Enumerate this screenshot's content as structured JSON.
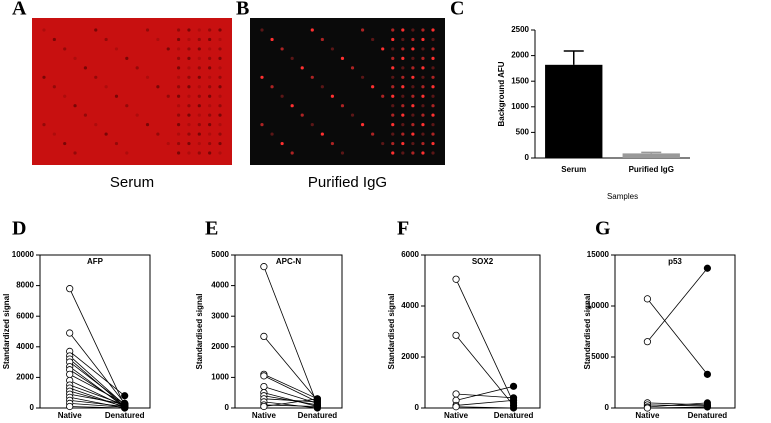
{
  "chart_data": [
    {
      "type": "image",
      "panel": "A",
      "caption": "Serum",
      "color": "#c81010"
    },
    {
      "type": "image",
      "panel": "B",
      "caption": "Purified IgG",
      "color": "#0a0a0a"
    },
    {
      "type": "bar",
      "panel": "C",
      "categories": [
        "Serum",
        "Purified IgG"
      ],
      "values": [
        1820,
        90
      ],
      "errors": [
        270,
        20
      ],
      "colors": [
        "#000000",
        "#999999"
      ],
      "ylabel": "Background AFU",
      "xlabel": "Samples",
      "ylim": [
        0,
        2500
      ],
      "yticks": [
        0,
        500,
        1000,
        1500,
        2000,
        2500
      ]
    },
    {
      "type": "line",
      "panel": "D",
      "title": "AFP",
      "categories": [
        "Native",
        "Denatured"
      ],
      "ylabel": "Standardized signal",
      "marker_styles": [
        "open",
        "filled"
      ],
      "ylim": [
        0,
        10000
      ],
      "yticks": [
        0,
        2000,
        4000,
        6000,
        8000,
        10000
      ],
      "series": [
        {
          "values": [
            7800,
            150
          ]
        },
        {
          "values": [
            4900,
            300
          ]
        },
        {
          "values": [
            3700,
            800
          ]
        },
        {
          "values": [
            3400,
            200
          ]
        },
        {
          "values": [
            3200,
            100
          ]
        },
        {
          "values": [
            3000,
            250
          ]
        },
        {
          "values": [
            2700,
            50
          ]
        },
        {
          "values": [
            2500,
            150
          ]
        },
        {
          "values": [
            2200,
            300
          ]
        },
        {
          "values": [
            1800,
            100
          ]
        },
        {
          "values": [
            1500,
            200
          ]
        },
        {
          "values": [
            1300,
            50
          ]
        },
        {
          "values": [
            1100,
            100
          ]
        },
        {
          "values": [
            900,
            250
          ]
        },
        {
          "values": [
            700,
            0
          ]
        },
        {
          "values": [
            500,
            100
          ]
        },
        {
          "values": [
            300,
            50
          ]
        },
        {
          "values": [
            100,
            0
          ]
        }
      ]
    },
    {
      "type": "line",
      "panel": "E",
      "title": "APC-N",
      "categories": [
        "Native",
        "Denatured"
      ],
      "ylabel": "Standardised signal",
      "marker_styles": [
        "open",
        "filled"
      ],
      "ylim": [
        0,
        5000
      ],
      "yticks": [
        0,
        1000,
        2000,
        3000,
        4000,
        5000
      ],
      "series": [
        {
          "values": [
            4620,
            100
          ]
        },
        {
          "values": [
            2340,
            250
          ]
        },
        {
          "values": [
            1100,
            300
          ]
        },
        {
          "values": [
            1050,
            200
          ]
        },
        {
          "values": [
            700,
            150
          ]
        },
        {
          "values": [
            500,
            50
          ]
        },
        {
          "values": [
            400,
            100
          ]
        },
        {
          "values": [
            300,
            200
          ]
        },
        {
          "values": [
            200,
            0
          ]
        },
        {
          "values": [
            100,
            50
          ]
        },
        {
          "values": [
            50,
            300
          ]
        }
      ]
    },
    {
      "type": "line",
      "panel": "F",
      "title": "SOX2",
      "categories": [
        "Native",
        "Denatured"
      ],
      "ylabel": "Standardised signal",
      "marker_styles": [
        "open",
        "filled"
      ],
      "ylim": [
        0,
        6000
      ],
      "yticks": [
        0,
        2000,
        4000,
        6000
      ],
      "series": [
        {
          "values": [
            5050,
            200
          ]
        },
        {
          "values": [
            2850,
            100
          ]
        },
        {
          "values": [
            550,
            400
          ]
        },
        {
          "values": [
            300,
            850
          ]
        },
        {
          "values": [
            100,
            300
          ]
        },
        {
          "values": [
            50,
            0
          ]
        }
      ]
    },
    {
      "type": "line",
      "panel": "G",
      "title": "p53",
      "categories": [
        "Native",
        "Denatured"
      ],
      "ylabel": "Standardised signal",
      "marker_styles": [
        "open",
        "filled"
      ],
      "ylim": [
        0,
        15000
      ],
      "yticks": [
        0,
        5000,
        10000,
        15000
      ],
      "series": [
        {
          "values": [
            10700,
            3300
          ]
        },
        {
          "values": [
            6500,
            13700
          ]
        },
        {
          "values": [
            500,
            300
          ]
        },
        {
          "values": [
            300,
            200
          ]
        },
        {
          "values": [
            100,
            500
          ]
        },
        {
          "values": [
            0,
            100
          ]
        }
      ]
    }
  ]
}
